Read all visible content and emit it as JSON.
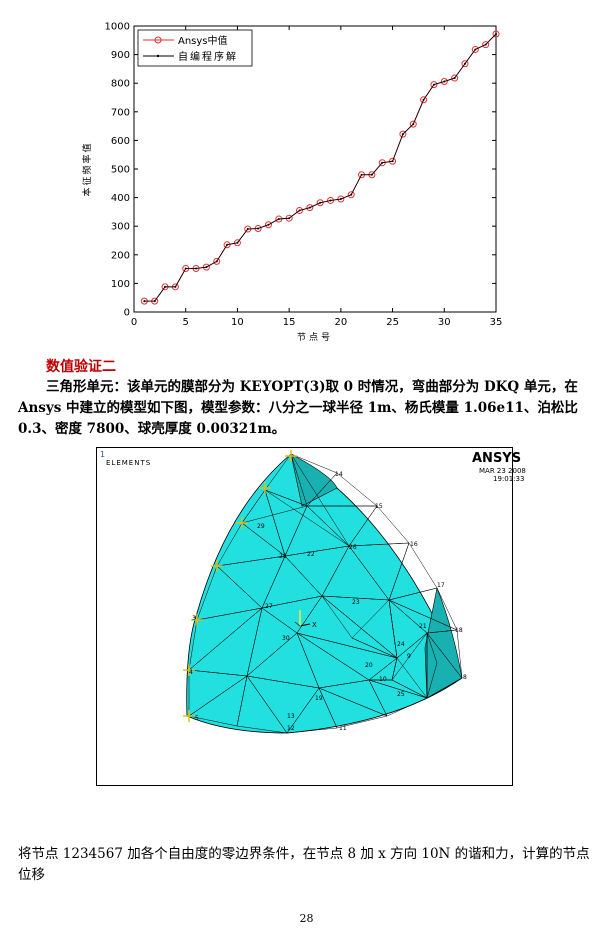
{
  "chart_data": {
    "type": "line",
    "ylabel": "本征频率值",
    "xlabel": "节点号",
    "xlim": [
      0,
      35
    ],
    "ylim": [
      0,
      1000
    ],
    "xticks": [
      0,
      5,
      10,
      15,
      20,
      25,
      30,
      35
    ],
    "yticks": [
      0,
      100,
      200,
      300,
      400,
      500,
      600,
      700,
      800,
      900,
      1000
    ],
    "legend_position": "top-left",
    "x": [
      1,
      2,
      3,
      4,
      5,
      6,
      7,
      8,
      9,
      10,
      11,
      12,
      13,
      14,
      15,
      16,
      17,
      18,
      19,
      20,
      21,
      22,
      23,
      24,
      25,
      26,
      27,
      28,
      29,
      30,
      31,
      32,
      33,
      34,
      35
    ],
    "series": [
      {
        "name": "Ansys中值",
        "color": "#e03030",
        "marker": "circle",
        "values": [
          38,
          38,
          88,
          88,
          152,
          152,
          157,
          177,
          235,
          242,
          290,
          292,
          305,
          325,
          328,
          355,
          365,
          382,
          390,
          395,
          410,
          480,
          480,
          522,
          527,
          622,
          657,
          742,
          795,
          806,
          818,
          868,
          918,
          935,
          972
        ]
      },
      {
        "name": "自编程序解",
        "color": "#000000",
        "marker": "dot",
        "values": [
          38,
          38,
          88,
          88,
          152,
          152,
          157,
          177,
          235,
          242,
          290,
          292,
          305,
          325,
          328,
          355,
          365,
          382,
          390,
          395,
          410,
          480,
          480,
          522,
          527,
          622,
          657,
          742,
          795,
          806,
          818,
          868,
          918,
          935,
          972
        ]
      }
    ]
  },
  "section_title": "数值验证二",
  "paragraph": "三角形单元：该单元的膜部分为 KEYOPT(3)取 0 时情况，弯曲部分为 DKQ 单元，在 Ansys 中建立的模型如下图，模型参数：八分之一球半径 1m、杨氏模量 1.06e11、泊松比 0.3、密度 7800、球壳厚度 0.00321m。",
  "figure": {
    "corner_label": "1",
    "elements_label": "ELEMENTS",
    "logo": "ANSYS",
    "date": "MAR 23 2008",
    "time": "19:01:33",
    "axis_x_label": "X",
    "node_labels": [
      "14",
      "15",
      "16",
      "17",
      "18",
      "8",
      "9",
      "10",
      "11",
      "12",
      "13",
      "19",
      "20",
      "21",
      "22",
      "23",
      "24",
      "25",
      "26",
      "27",
      "28",
      "29",
      "30",
      "3",
      "4",
      "5"
    ],
    "mesh_color": "#22e0e0",
    "shade_color": "#18b0b0"
  },
  "paragraph2": "将节点 1234567 加各个自由度的零边界条件，在节点 8 加 x 方向 10N 的谐和力，计算的节点位移",
  "page_number": "28"
}
